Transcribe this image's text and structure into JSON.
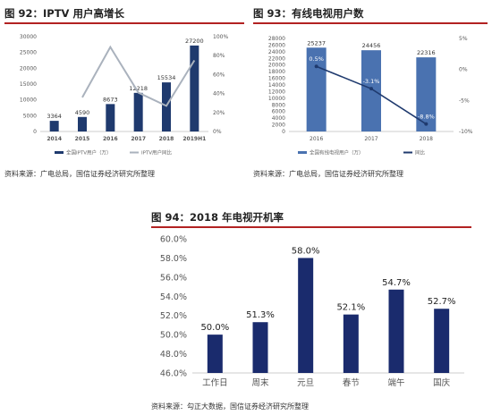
{
  "panels": [
    {
      "title": "图 92：IPTV 用户高增长",
      "source": "资料来源：广电总局，国信证券经济研究所整理",
      "chart_data": {
        "type": "bar",
        "categories": [
          "2014",
          "2015",
          "2016",
          "2017",
          "2018",
          "2019H1"
        ],
        "series": [
          {
            "name": "全国IPTV用户（万）",
            "kind": "bar",
            "axis": "left",
            "values": [
              3364,
              4590,
              8673,
              12218,
              15534,
              27200
            ],
            "labels": [
              "3364",
              "4590",
              "8673",
              "12218",
              "15534",
              "27200"
            ],
            "color": "#1f3a6e"
          },
          {
            "name": "IPTV用户同比",
            "kind": "line",
            "axis": "right",
            "values": [
              null,
              36,
              89,
              41,
              27,
              75
            ],
            "color": "#aab2bd"
          }
        ],
        "left_axis": {
          "ylim": [
            0,
            30000
          ],
          "ticks": [
            "0",
            "5000",
            "10000",
            "15000",
            "20000",
            "25000",
            "30000"
          ]
        },
        "right_axis": {
          "ylim": [
            0,
            100
          ],
          "ticks": [
            "0%",
            "20%",
            "40%",
            "60%",
            "80%",
            "100%"
          ]
        },
        "legend_position": "bottom"
      }
    },
    {
      "title": "图 93：有线电视用户数",
      "source": "资料来源：广电总局，国信证券经济研究所整理",
      "chart_data": {
        "type": "bar",
        "categories": [
          "2016",
          "2017",
          "2018"
        ],
        "series": [
          {
            "name": "全国有线电视用户（万）",
            "kind": "bar",
            "axis": "left",
            "values": [
              25237,
              24456,
              22316
            ],
            "labels": [
              "25237",
              "24456",
              "22316"
            ],
            "color": "#4a72b0"
          },
          {
            "name": "同比",
            "kind": "line",
            "axis": "right",
            "values": [
              0.5,
              -3.1,
              -8.8
            ],
            "labels": [
              "0.5%",
              "-3.1%",
              "-8.8%"
            ],
            "color": "#1f3a6e"
          }
        ],
        "left_axis": {
          "ylim": [
            0,
            28000
          ],
          "ticks": [
            "0",
            "2000",
            "4000",
            "6000",
            "8000",
            "10000",
            "12000",
            "14000",
            "16000",
            "18000",
            "20000",
            "22000",
            "24000",
            "26000",
            "28000"
          ]
        },
        "right_axis": {
          "ylim": [
            -10,
            5
          ],
          "ticks": [
            "5%",
            "0%",
            "-5%",
            "-10%"
          ]
        },
        "legend_position": "bottom"
      }
    },
    {
      "title": "图 94：2018 年电视开机率",
      "source": "资料来源：勾正大数据，国信证券经济研究所整理",
      "chart_data": {
        "type": "bar",
        "categories": [
          "工作日",
          "周末",
          "元旦",
          "春节",
          "端午",
          "国庆"
        ],
        "values": [
          50.0,
          51.3,
          58.0,
          52.1,
          54.7,
          52.7
        ],
        "labels": [
          "50.0%",
          "51.3%",
          "58.0%",
          "52.1%",
          "54.7%",
          "52.7%"
        ],
        "color": "#1a2b6d",
        "ylim": [
          46,
          60
        ],
        "ticks": [
          "46.0%",
          "48.0%",
          "50.0%",
          "52.0%",
          "54.0%",
          "56.0%",
          "58.0%",
          "60.0%"
        ]
      }
    }
  ]
}
